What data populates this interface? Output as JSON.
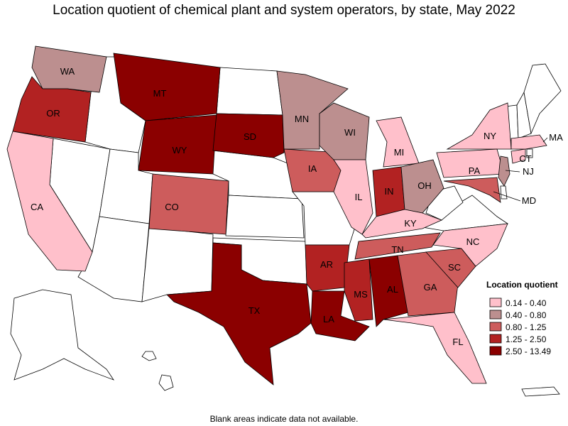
{
  "title": "Location quotient of chemical plant and system operators, by state, May 2022",
  "states": [
    {
      "label": "WA",
      "color": "#bc8f8f"
    },
    {
      "label": "OR",
      "color": "#b22222"
    },
    {
      "label": "CA",
      "color": "#ffc0cb"
    },
    {
      "label": "MT",
      "color": "#8b0000"
    },
    {
      "label": "WY",
      "color": "#8b0000"
    },
    {
      "label": "SD",
      "color": "#8b0000"
    },
    {
      "label": "CO",
      "color": "#cd5c5c"
    },
    {
      "label": "TX",
      "color": "#8b0000"
    },
    {
      "label": "MN",
      "color": "#bc8f8f"
    },
    {
      "label": "IA",
      "color": "#cd5c5c"
    },
    {
      "label": "AR",
      "color": "#b22222"
    },
    {
      "label": "LA",
      "color": "#8b0000"
    },
    {
      "label": "WI",
      "color": "#bc8f8f"
    },
    {
      "label": "IL",
      "color": "#ffc0cb"
    },
    {
      "label": "MI",
      "color": "#ffc0cb"
    },
    {
      "label": "IN",
      "color": "#b22222"
    },
    {
      "label": "OH",
      "color": "#bc8f8f"
    },
    {
      "label": "KY",
      "color": "#ffc0cb"
    },
    {
      "label": "TN",
      "color": "#cd5c5c"
    },
    {
      "label": "MS",
      "color": "#b22222"
    },
    {
      "label": "AL",
      "color": "#8b0000"
    },
    {
      "label": "GA",
      "color": "#cd5c5c"
    },
    {
      "label": "FL",
      "color": "#ffc0cb"
    },
    {
      "label": "SC",
      "color": "#cd5c5c"
    },
    {
      "label": "NC",
      "color": "#ffc0cb"
    },
    {
      "label": "NY",
      "color": "#ffc0cb"
    },
    {
      "label": "PA",
      "color": "#ffc0cb"
    },
    {
      "label": "NJ",
      "color": "#bc8f8f"
    },
    {
      "label": "MD",
      "color": "#cd5c5c"
    },
    {
      "label": "CT",
      "color": "#ffc0cb"
    },
    {
      "label": "MA",
      "color": "#ffc0cb"
    }
  ],
  "legend": {
    "title": "Location quotient",
    "items": [
      {
        "label": "0.14 - 0.40",
        "color": "#ffc0cb"
      },
      {
        "label": "0.40 - 0.80",
        "color": "#bc8f8f"
      },
      {
        "label": "0.80 - 1.25",
        "color": "#cd5c5c"
      },
      {
        "label": "1.25 - 2.50",
        "color": "#b22222"
      },
      {
        "label": "2.50 - 13.49",
        "color": "#8b0000"
      }
    ]
  },
  "note": "Blank areas indicate data not available."
}
